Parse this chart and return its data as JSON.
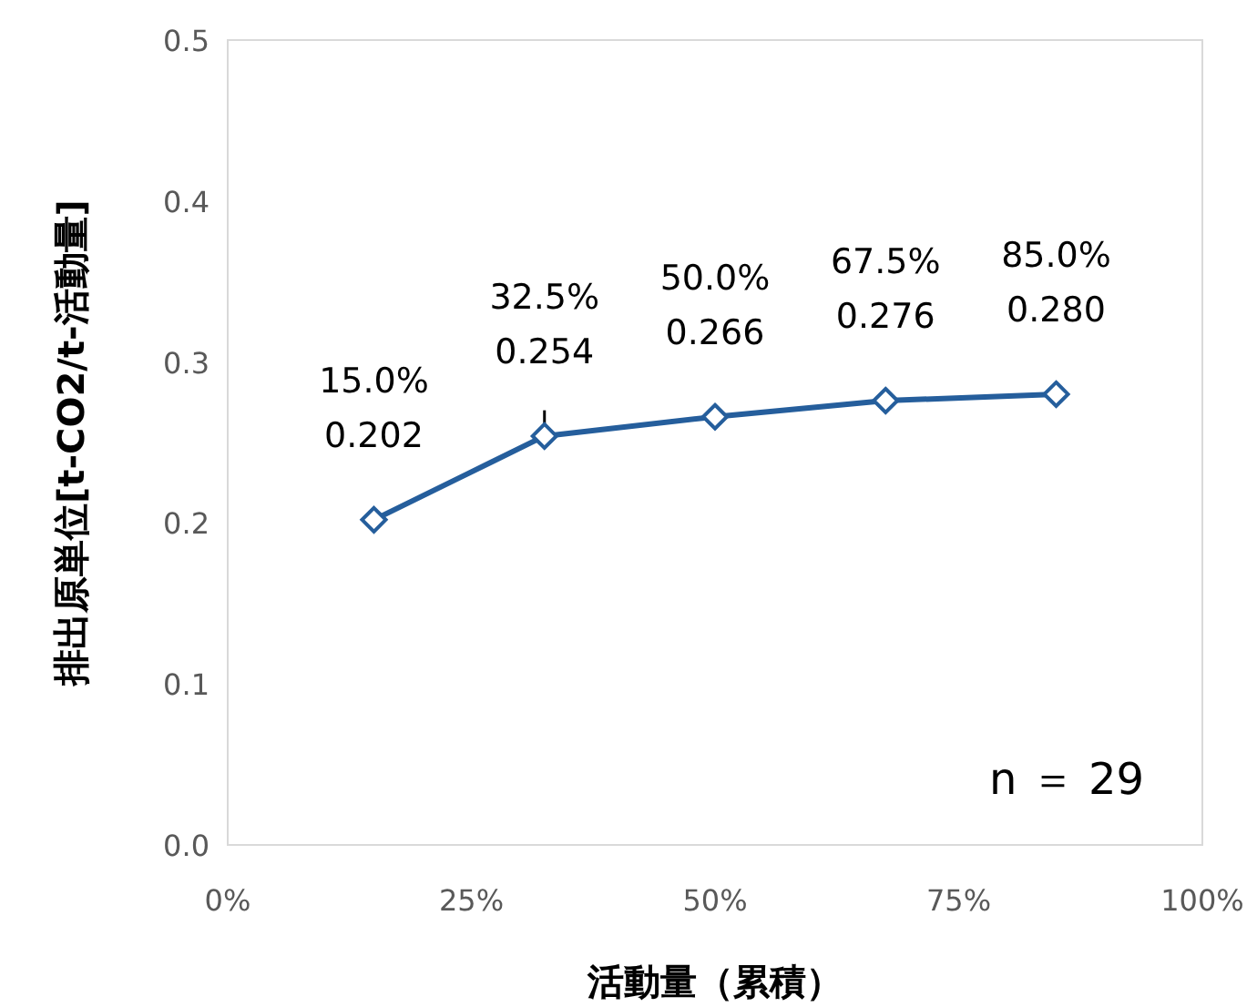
{
  "chart_data": {
    "type": "line",
    "xlabel": "活動量（累積）",
    "ylabel": "排出原単位[t-CO2/t-活動量]",
    "x": [
      15,
      32.5,
      50,
      67.5,
      85
    ],
    "series": [
      {
        "color": "#255e9c",
        "values": [
          0.202,
          0.254,
          0.266,
          0.276,
          0.28
        ],
        "errors": [
          null,
          [
            0.254,
            0.27
          ],
          null,
          null,
          null
        ],
        "value_labels": [
          "15.0%\n0.202",
          "32.5%\n0.254",
          "50.0%\n0.266",
          "67.5%\n0.276",
          "85.0%\n0.280"
        ]
      }
    ],
    "xlim": [
      0,
      100
    ],
    "xticks": [
      {
        "value": 0,
        "label": "0%"
      },
      {
        "value": 25,
        "label": "25%"
      },
      {
        "value": 50,
        "label": "50%"
      },
      {
        "value": 75,
        "label": "75%"
      },
      {
        "value": 100,
        "label": "100%"
      }
    ],
    "ylim": [
      0,
      0.5
    ],
    "yticks": [
      {
        "value": 0,
        "label": "0.0"
      },
      {
        "value": 0.1,
        "label": "0.1"
      },
      {
        "value": 0.2,
        "label": "0.2"
      },
      {
        "value": 0.3,
        "label": "0.3"
      },
      {
        "value": 0.4,
        "label": "0.4"
      },
      {
        "value": 0.5,
        "label": "0.5"
      }
    ],
    "annotations": [
      "n ＝ 29"
    ],
    "marker": "diamond",
    "line_style": "solid",
    "grid": false
  }
}
